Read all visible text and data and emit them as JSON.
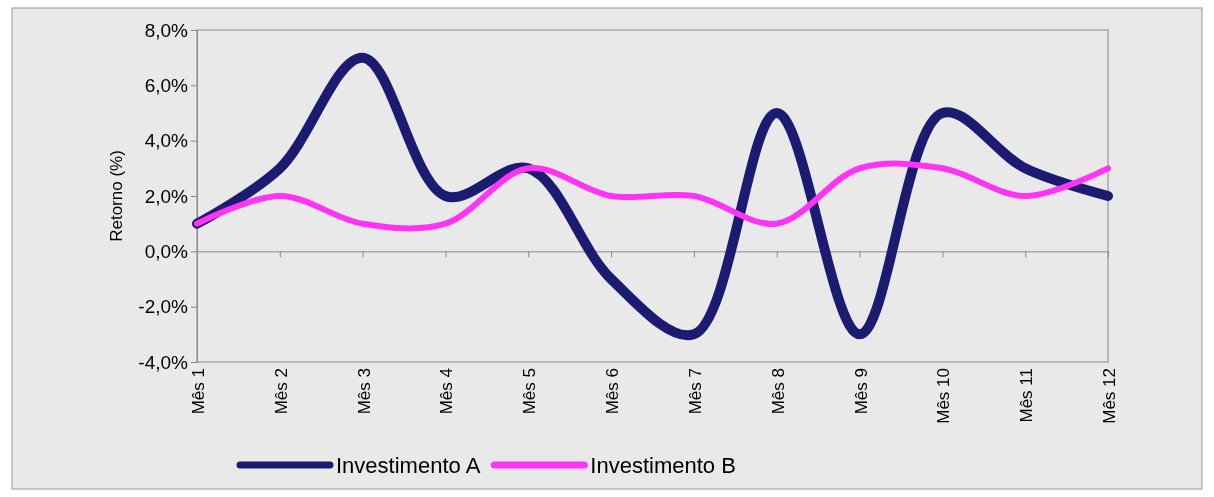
{
  "chart_data": {
    "type": "line",
    "ylabel": "Retorno (%)",
    "categories": [
      "Mês 1",
      "Mês 2",
      "Mês 3",
      "Mês 4",
      "Mês 5",
      "Mês 6",
      "Mês 7",
      "Mês 8",
      "Mês 9",
      "Mês 10",
      "Mês 11",
      "Mês 12"
    ],
    "series": [
      {
        "name": "Investimento A",
        "color": "#1b1b72",
        "values": [
          1.0,
          3.0,
          7.0,
          2.0,
          3.0,
          -1.0,
          -3.0,
          5.0,
          -3.0,
          5.0,
          3.0,
          2.0
        ]
      },
      {
        "name": "Investimento B",
        "color": "#ff33f5",
        "values": [
          1.0,
          2.0,
          1.0,
          1.0,
          3.0,
          2.0,
          2.0,
          1.0,
          3.0,
          3.0,
          2.0,
          3.0
        ]
      }
    ],
    "ylim": [
      -4,
      8
    ],
    "yticks": [
      {
        "value": -4,
        "label": "-4,0%"
      },
      {
        "value": -2,
        "label": "-2,0%"
      },
      {
        "value": 0,
        "label": "0,0%"
      },
      {
        "value": 2,
        "label": "2,0%"
      },
      {
        "value": 4,
        "label": "4,0%"
      },
      {
        "value": 6,
        "label": "6,0%"
      },
      {
        "value": 8,
        "label": "8,0%"
      }
    ],
    "grid": false,
    "legend": "bottom",
    "marker": "none",
    "line_style": "solid"
  }
}
